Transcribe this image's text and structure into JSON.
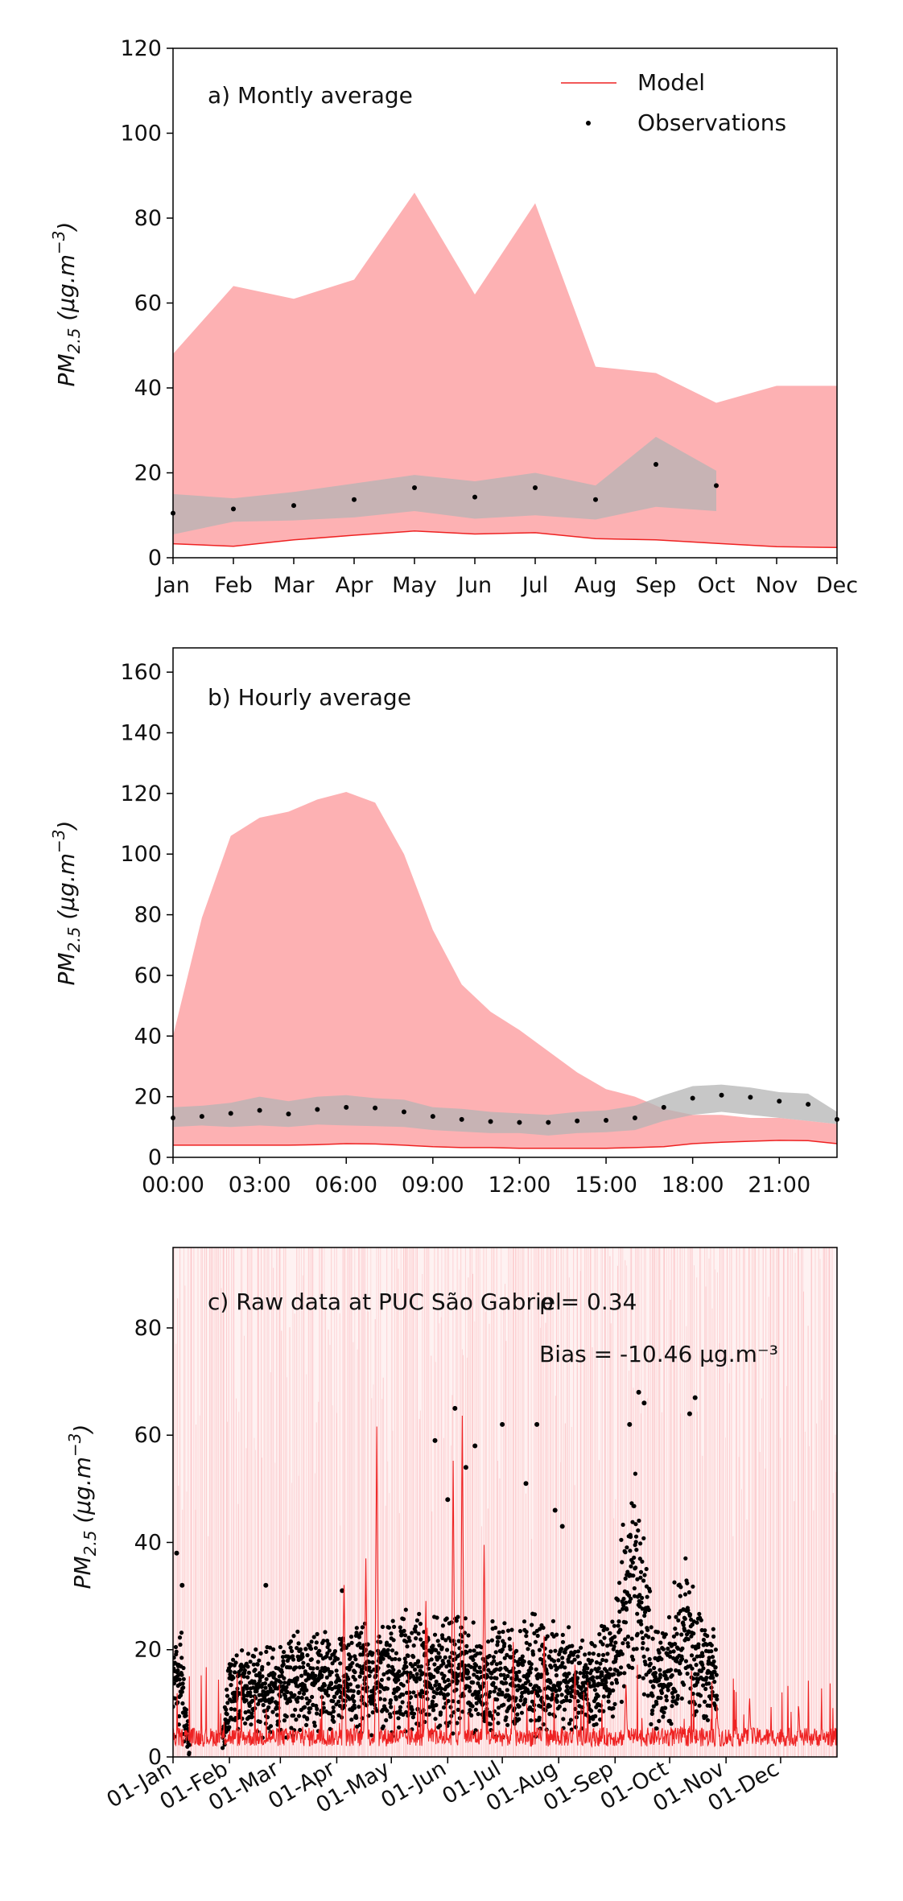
{
  "colors": {
    "model_band": "#fdb1b3",
    "model_line": "#ee2222",
    "obs_band": "#b4b4b4",
    "obs_point": "#000000",
    "raw_band": "#fde2e3"
  },
  "chart_data": [
    {
      "type": "area",
      "panel_label": "a) Montly average",
      "ylabel": "PM2.5 (μg.m⁻³)",
      "ylim": [
        0,
        120
      ],
      "yticks": [
        0,
        20,
        40,
        60,
        80,
        100,
        120
      ],
      "xlim": [
        1,
        12
      ],
      "categories": [
        "Jan",
        "Feb",
        "Mar",
        "Apr",
        "May",
        "Jun",
        "Jul",
        "Aug",
        "Sep",
        "Oct",
        "Nov",
        "Dec"
      ],
      "legend": {
        "placement": "top-right",
        "entries": [
          "Model",
          "Observations"
        ]
      },
      "series": [
        {
          "name": "Model",
          "kind": "line",
          "values": [
            3.3,
            2.7,
            4.2,
            5.3,
            6.3,
            5.6,
            5.9,
            4.5,
            4.2,
            3.4,
            2.6,
            2.4
          ]
        },
        {
          "kind": "band",
          "color_key": "model_band",
          "lower": [
            3.3,
            2.7,
            4.2,
            5.3,
            6.3,
            5.6,
            5.9,
            4.5,
            4.2,
            3.4,
            2.6,
            2.4
          ],
          "upper": [
            48,
            64,
            61,
            65.5,
            86,
            62,
            83.5,
            45,
            43.5,
            36.5,
            40.5,
            40.5
          ]
        },
        {
          "kind": "band",
          "color_key": "obs_band",
          "x": [
            1,
            2,
            3,
            4,
            5,
            6,
            7,
            8,
            9,
            10
          ],
          "lower": [
            5.5,
            8.5,
            8.8,
            9.5,
            11,
            9.2,
            10,
            9,
            12,
            11
          ],
          "upper": [
            15,
            14,
            15.5,
            17.5,
            19.5,
            18,
            20,
            17,
            28.5,
            20.5
          ]
        },
        {
          "name": "Observations",
          "kind": "points",
          "x": [
            1,
            2,
            3,
            4,
            5,
            6,
            7,
            8,
            9,
            10
          ],
          "values": [
            10.5,
            11.5,
            12.3,
            13.7,
            16.5,
            14.3,
            16.5,
            13.7,
            22,
            17
          ]
        }
      ]
    },
    {
      "type": "area",
      "panel_label": "b) Hourly average",
      "ylabel": "PM2.5 (μg.m⁻³)",
      "ylim": [
        0,
        168
      ],
      "yticks": [
        0,
        20,
        40,
        60,
        80,
        100,
        120,
        140,
        160
      ],
      "xlim": [
        0,
        23
      ],
      "xtick_positions": [
        0,
        3,
        6,
        9,
        12,
        15,
        18,
        21
      ],
      "xtick_labels": [
        "00:00",
        "03:00",
        "06:00",
        "09:00",
        "12:00",
        "15:00",
        "18:00",
        "21:00"
      ],
      "hours": [
        0,
        1,
        2,
        3,
        4,
        5,
        6,
        7,
        8,
        9,
        10,
        11,
        12,
        13,
        14,
        15,
        16,
        17,
        18,
        19,
        20,
        21,
        22,
        23
      ],
      "series": [
        {
          "name": "Model",
          "kind": "line",
          "values": [
            4,
            4,
            4,
            4,
            4,
            4.2,
            4.5,
            4.4,
            4,
            3.5,
            3.2,
            3.2,
            3,
            3,
            3,
            3,
            3.2,
            3.5,
            4.5,
            5,
            5.3,
            5.6,
            5.5,
            4.5
          ]
        },
        {
          "kind": "band",
          "color_key": "model_band",
          "lower": [
            4,
            4,
            4,
            4,
            4,
            4.2,
            4.5,
            4.4,
            4,
            3.5,
            3.2,
            3.2,
            3,
            3,
            3,
            3,
            3.2,
            3.5,
            4.5,
            5,
            5.3,
            5.6,
            5.5,
            4.5
          ],
          "upper": [
            40,
            79,
            106,
            112,
            114,
            118,
            120.5,
            117,
            100,
            75,
            57,
            48,
            42,
            35,
            28,
            22.5,
            20,
            16,
            14,
            14,
            13,
            13,
            12,
            11
          ]
        },
        {
          "kind": "band",
          "color_key": "obs_band",
          "lower": [
            10,
            10.5,
            10,
            10.5,
            10,
            10.8,
            10.5,
            10.3,
            10,
            9,
            8.5,
            8,
            8,
            7.2,
            8,
            8.3,
            9,
            12,
            14,
            15,
            14,
            13,
            12,
            11
          ],
          "upper": [
            16.5,
            17,
            18,
            20,
            18.5,
            20,
            20.5,
            19.5,
            19,
            16.5,
            16,
            15,
            14.5,
            14,
            15,
            15.5,
            17,
            20.5,
            23.5,
            24,
            23,
            21.5,
            21,
            15
          ]
        },
        {
          "name": "Observations",
          "kind": "points",
          "values": [
            13,
            13.5,
            14.5,
            15.5,
            14.3,
            15.8,
            16.5,
            16.3,
            15,
            13.5,
            12.5,
            11.8,
            11.5,
            11.5,
            12,
            12.2,
            13,
            16.5,
            19.5,
            20.5,
            19.8,
            18.5,
            17.5,
            12.5
          ]
        }
      ]
    },
    {
      "type": "line",
      "panel_label": "c) Raw data at PUC São Gabriel",
      "stats": [
        "ρ = 0.34",
        "Bias = -10.46 μg.m⁻³"
      ],
      "ylabel": "PM2.5 (μg.m⁻³)",
      "ylim": [
        0,
        95
      ],
      "yticks": [
        0,
        20,
        40,
        60,
        80
      ],
      "x_unit": "day of year",
      "xlim": [
        1,
        366
      ],
      "xtick_days": [
        1,
        32,
        60,
        91,
        121,
        152,
        182,
        213,
        244,
        274,
        305,
        335
      ],
      "xtick_labels": [
        "01-Jan",
        "01-Feb",
        "01-Mar",
        "01-Apr",
        "01-May",
        "01-Jun",
        "01-Jul",
        "01-Aug",
        "01-Sep",
        "01-Oct",
        "01-Nov",
        "01-Dec"
      ],
      "obs_envelope": {
        "day": [
          1,
          5,
          10,
          15,
          20,
          28,
          32,
          40,
          50,
          60,
          70,
          80,
          90,
          100,
          110,
          120,
          130,
          140,
          150,
          160,
          170,
          180,
          190,
          200,
          210,
          220,
          230,
          240,
          245,
          250,
          255,
          260,
          265,
          270,
          275,
          280,
          285,
          290,
          300,
          306,
          366
        ],
        "median": [
          12,
          15,
          2,
          null,
          null,
          3,
          12,
          13,
          12,
          13,
          14,
          14,
          13,
          14,
          15,
          15,
          16,
          15,
          15,
          16,
          14,
          15,
          14,
          16,
          15,
          14,
          13,
          15,
          20,
          30,
          35,
          25,
          15,
          14,
          16,
          25,
          22,
          16,
          14,
          null,
          null
        ],
        "spread": [
          10,
          12,
          3,
          null,
          null,
          3,
          8,
          9,
          9,
          10,
          11,
          11,
          10,
          11,
          12,
          13,
          14,
          12,
          12,
          13,
          11,
          12,
          11,
          13,
          12,
          11,
          10,
          12,
          16,
          20,
          22,
          18,
          12,
          11,
          12,
          18,
          16,
          12,
          10,
          null,
          null
        ]
      },
      "obs_peaks": [
        {
          "day": 3,
          "value": 38
        },
        {
          "day": 6,
          "value": 32
        },
        {
          "day": 52,
          "value": 32
        },
        {
          "day": 94,
          "value": 31
        },
        {
          "day": 145,
          "value": 59
        },
        {
          "day": 152,
          "value": 48
        },
        {
          "day": 156,
          "value": 65
        },
        {
          "day": 162,
          "value": 54
        },
        {
          "day": 167,
          "value": 58
        },
        {
          "day": 182,
          "value": 62
        },
        {
          "day": 195,
          "value": 51
        },
        {
          "day": 201,
          "value": 62
        },
        {
          "day": 211,
          "value": 46
        },
        {
          "day": 215,
          "value": 43
        },
        {
          "day": 252,
          "value": 62
        },
        {
          "day": 257,
          "value": 68
        },
        {
          "day": 260,
          "value": 66
        },
        {
          "day": 285,
          "value": 64
        },
        {
          "day": 288,
          "value": 67
        }
      ],
      "model_baseline": 3,
      "model_peaks": [
        {
          "day": 95,
          "value": 32
        },
        {
          "day": 107,
          "value": 36
        },
        {
          "day": 113,
          "value": 61
        },
        {
          "day": 140,
          "value": 28
        },
        {
          "day": 155,
          "value": 54
        },
        {
          "day": 160,
          "value": 63
        },
        {
          "day": 172,
          "value": 38
        },
        {
          "day": 188,
          "value": 20
        },
        {
          "day": 205,
          "value": 22
        },
        {
          "day": 222,
          "value": 17
        },
        {
          "day": 250,
          "value": 12
        },
        {
          "day": 300,
          "value": 9
        },
        {
          "day": 318,
          "value": 10
        },
        {
          "day": 345,
          "value": 8
        }
      ]
    }
  ]
}
